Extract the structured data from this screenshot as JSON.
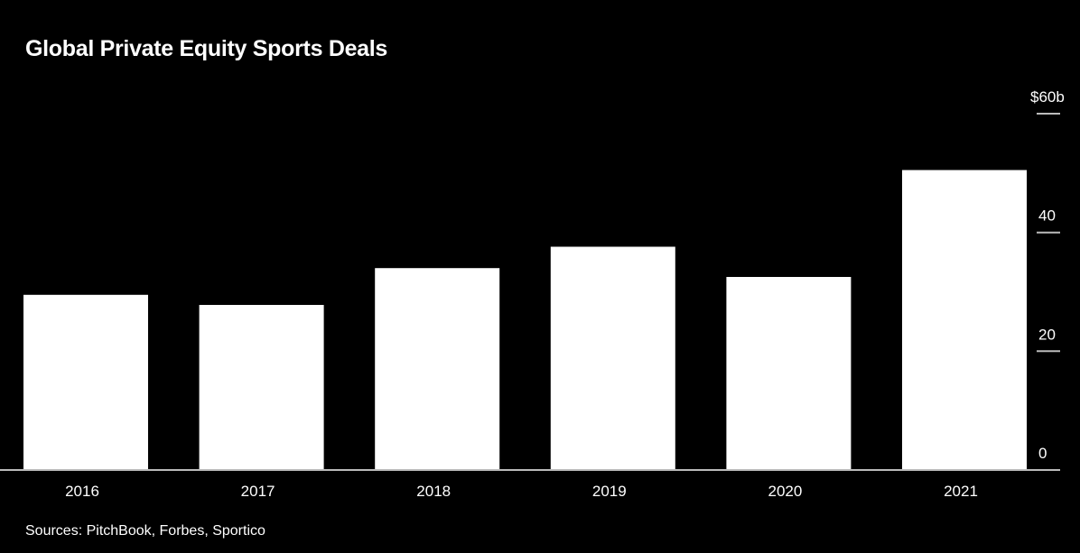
{
  "chart_data": {
    "type": "bar",
    "title": "Global Private Equity Sports Deals",
    "categories": [
      "2016",
      "2017",
      "2018",
      "2019",
      "2020",
      "2021"
    ],
    "values": [
      29.5,
      27.8,
      34.0,
      37.6,
      32.5,
      50.5
    ],
    "ylim": [
      0,
      60
    ],
    "yticks": [
      0,
      20,
      40,
      60
    ],
    "ytick_labels": [
      "0",
      "20",
      "40",
      "$60b"
    ],
    "xlabel": "",
    "ylabel": "",
    "grid": false,
    "axis_side": "right",
    "bar_color": "#ffffff",
    "background_color": "#000000",
    "source": "Sources: PitchBook, Forbes, Sportico"
  }
}
